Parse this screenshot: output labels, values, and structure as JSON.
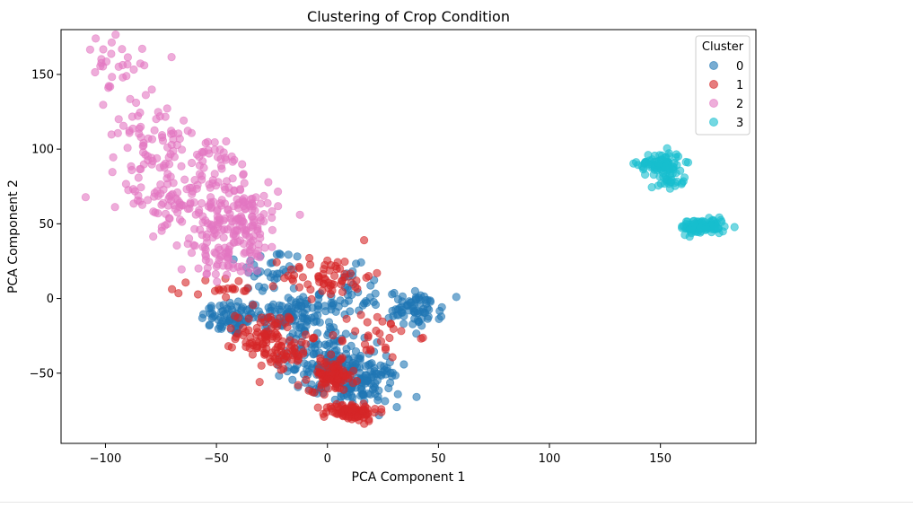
{
  "chart_data": {
    "type": "scatter",
    "title": "Clustering of Crop Condition",
    "xlabel": "PCA Component 1",
    "ylabel": "PCA Component 2",
    "xlim": [
      -120,
      193
    ],
    "ylim": [
      -97,
      180
    ],
    "xticks": [
      -100,
      -50,
      0,
      50,
      100,
      150
    ],
    "yticks": [
      -50,
      0,
      50,
      100,
      150
    ],
    "xtick_labels": [
      "−100",
      "−50",
      "0",
      "50",
      "100",
      "150"
    ],
    "ytick_labels": [
      "−50",
      "0",
      "50",
      "100",
      "150"
    ],
    "grid": false,
    "legend": {
      "title": "Cluster",
      "placement": "top-right"
    },
    "series": [
      {
        "name": "0",
        "color": "#1f77b4",
        "clusters": [
          {
            "cx": -43,
            "cy": -13,
            "sx": 7,
            "sy": 6,
            "n": 70
          },
          {
            "cx": -17,
            "cy": -10,
            "sx": 9,
            "sy": 7,
            "n": 90
          },
          {
            "cx": -25,
            "cy": 18,
            "sx": 7,
            "sy": 8,
            "n": 35
          },
          {
            "cx": 8,
            "cy": 0,
            "sx": 8,
            "sy": 10,
            "n": 45
          },
          {
            "cx": 3,
            "cy": -45,
            "sx": 10,
            "sy": 8,
            "n": 130
          },
          {
            "cx": 15,
            "cy": -58,
            "sx": 9,
            "sy": 7,
            "n": 110
          },
          {
            "cx": 40,
            "cy": -7,
            "sx": 6,
            "sy": 6,
            "n": 70
          },
          {
            "cx": -5,
            "cy": -28,
            "sx": 8,
            "sy": 6,
            "n": 35
          }
        ]
      },
      {
        "name": "1",
        "color": "#d62728",
        "clusters": [
          {
            "cx": -27,
            "cy": -25,
            "sx": 7,
            "sy": 8,
            "n": 85
          },
          {
            "cx": -20,
            "cy": -40,
            "sx": 5,
            "sy": 6,
            "n": 35
          },
          {
            "cx": 2,
            "cy": -52,
            "sx": 5,
            "sy": 5,
            "n": 90
          },
          {
            "cx": 11,
            "cy": -76,
            "sx": 6,
            "sy": 3,
            "n": 90
          },
          {
            "cx": 0,
            "cy": 15,
            "sx": 10,
            "sy": 7,
            "n": 60
          },
          {
            "cx": 20,
            "cy": -25,
            "sx": 10,
            "sy": 8,
            "n": 30
          },
          {
            "cx": -45,
            "cy": 5,
            "sx": 8,
            "sy": 5,
            "n": 20
          }
        ]
      },
      {
        "name": "2",
        "color": "#e377c2",
        "clusters": [
          {
            "cx": -55,
            "cy": 75,
            "sx": 13,
            "sy": 18,
            "n": 130
          },
          {
            "cx": -38,
            "cy": 50,
            "sx": 8,
            "sy": 14,
            "n": 120
          },
          {
            "cx": -80,
            "cy": 110,
            "sx": 9,
            "sy": 20,
            "n": 70
          },
          {
            "cx": -97,
            "cy": 155,
            "sx": 7,
            "sy": 9,
            "n": 25
          },
          {
            "cx": -50,
            "cy": 30,
            "sx": 8,
            "sy": 9,
            "n": 50
          },
          {
            "cx": -75,
            "cy": 65,
            "sx": 8,
            "sy": 10,
            "n": 30
          }
        ]
      },
      {
        "name": "3",
        "color": "#17becf",
        "clusters": [
          {
            "cx": 150,
            "cy": 90,
            "sx": 5,
            "sy": 4,
            "n": 85
          },
          {
            "cx": 155,
            "cy": 80,
            "sx": 3,
            "sy": 3,
            "n": 25
          },
          {
            "cx": 169,
            "cy": 48,
            "sx": 5,
            "sy": 2.5,
            "n": 110
          }
        ]
      }
    ]
  }
}
